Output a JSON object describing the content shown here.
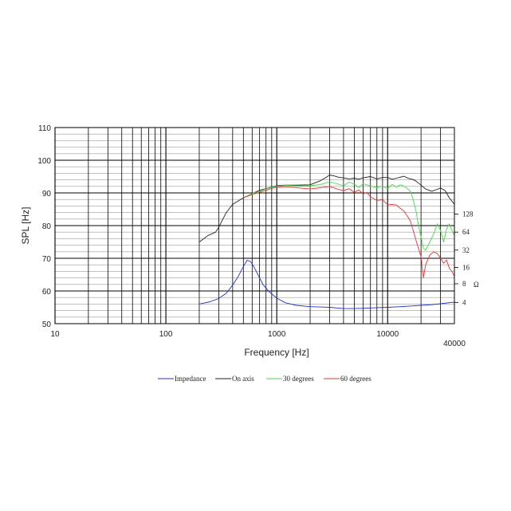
{
  "chart_data": {
    "type": "line",
    "xlabel": "Frequency [Hz]",
    "ylabel": "SPL [Hz]",
    "x_scale": "log",
    "xlim": [
      10,
      40000
    ],
    "ylim": [
      50,
      110
    ],
    "grid": true,
    "legend_position": "bottom",
    "x_ticks": [
      {
        "value": 10,
        "label": "10"
      },
      {
        "value": 100,
        "label": "100"
      },
      {
        "value": 1000,
        "label": "1000"
      },
      {
        "value": 10000,
        "label": "10000"
      },
      {
        "value": 40000,
        "label": "40000"
      }
    ],
    "y_ticks": [
      {
        "value": 50,
        "label": "50"
      },
      {
        "value": 60,
        "label": "60"
      },
      {
        "value": 70,
        "label": "70"
      },
      {
        "value": 80,
        "label": "80"
      },
      {
        "value": 90,
        "label": "90"
      },
      {
        "value": 100,
        "label": "100"
      },
      {
        "value": 110,
        "label": "110"
      }
    ],
    "right_axis": {
      "unit": "Ω",
      "ticks": [
        {
          "label": "4",
          "spl": 56.5
        },
        {
          "label": "8",
          "spl": 62.2
        },
        {
          "label": "16",
          "spl": 67.2
        },
        {
          "label": "32",
          "spl": 72.5
        },
        {
          "label": "64",
          "spl": 78.0
        },
        {
          "label": "128",
          "spl": 83.5
        }
      ]
    },
    "series": [
      {
        "name": "Impedance",
        "color": "#1f2fe0",
        "x": [
          200,
          250,
          300,
          350,
          400,
          450,
          500,
          540,
          580,
          620,
          680,
          750,
          850,
          1000,
          1200,
          1500,
          2000,
          2500,
          3000,
          3500,
          4000,
          5000,
          6000,
          8000,
          10000,
          13000,
          16000,
          20000,
          25000,
          30000,
          40000
        ],
        "y": [
          56,
          56.7,
          57.7,
          59.3,
          61.8,
          64.5,
          67.5,
          69.4,
          69,
          67.5,
          64.8,
          62,
          59.8,
          57.8,
          56.4,
          55.6,
          55.2,
          55.1,
          55,
          54.8,
          54.6,
          54.6,
          54.7,
          54.9,
          55,
          55.2,
          55.4,
          55.6,
          55.8,
          56.1,
          56.6
        ]
      },
      {
        "name": "On axis",
        "color": "#222222",
        "x": [
          200,
          220,
          240,
          260,
          280,
          300,
          350,
          400,
          500,
          600,
          700,
          800,
          900,
          1000,
          1200,
          1500,
          2000,
          2500,
          2800,
          3000,
          3300,
          3600,
          4000,
          4500,
          5000,
          5500,
          6000,
          7000,
          8000,
          9000,
          10000,
          11000,
          12000,
          13000,
          14000,
          15000,
          16000,
          17000,
          18000,
          20000,
          22000,
          25000,
          28000,
          30000,
          33000,
          36000,
          40000
        ],
        "y": [
          75,
          76,
          77,
          77.5,
          78,
          79.5,
          84,
          86.5,
          88.5,
          89.8,
          90.8,
          91.3,
          91.8,
          92.2,
          92.4,
          92.4,
          92.5,
          93.8,
          94.8,
          95.5,
          95.2,
          94.8,
          94.6,
          94.3,
          94.5,
          94.2,
          94.6,
          95,
          94.3,
          94.7,
          94.7,
          94.2,
          94.5,
          94.8,
          95.1,
          94.6,
          94.3,
          94.1,
          93.6,
          92.4,
          91.2,
          90.5,
          91.1,
          91.5,
          90.7,
          88.5,
          86.5
        ]
      },
      {
        "name": "30 degrees",
        "color": "#44dd44",
        "x": [
          500,
          600,
          700,
          800,
          900,
          1000,
          1200,
          1500,
          2000,
          2500,
          3000,
          3500,
          4000,
          4500,
          5000,
          5500,
          6000,
          6500,
          7000,
          8000,
          9000,
          10000,
          11000,
          12000,
          13000,
          14000,
          15000,
          16000,
          17000,
          18000,
          19000,
          20000,
          21000,
          22000,
          24000,
          26000,
          28000,
          30000,
          32000,
          34000,
          36000,
          38000,
          40000
        ],
        "y": [
          88.5,
          89.8,
          90.5,
          91.2,
          91.7,
          92,
          92.3,
          92.2,
          92.2,
          92.6,
          93.4,
          92.8,
          92.2,
          93.3,
          92.7,
          91.6,
          92.8,
          92.5,
          92.1,
          91.7,
          92.1,
          91.3,
          92.6,
          91.8,
          92.5,
          92.1,
          91.4,
          90.5,
          88,
          84.5,
          80,
          76.5,
          73,
          72.5,
          75,
          77.5,
          80.5,
          78.5,
          75,
          79,
          80.5,
          78.5,
          77
        ]
      },
      {
        "name": "60 degrees",
        "color": "#ee3333",
        "x": [
          500,
          600,
          700,
          800,
          900,
          1000,
          1200,
          1500,
          2000,
          2500,
          3000,
          3500,
          4000,
          4500,
          5000,
          5500,
          6000,
          6500,
          7000,
          8000,
          9000,
          10000,
          11000,
          12000,
          13000,
          14000,
          15000,
          16000,
          17000,
          18000,
          19000,
          20000,
          21000,
          22000,
          24000,
          26000,
          28000,
          30000,
          32000,
          34000,
          36000,
          38000,
          40000
        ],
        "y": [
          88.5,
          89.5,
          90.2,
          90.8,
          91.4,
          91.8,
          91.9,
          91.6,
          91.2,
          91.6,
          92,
          91.2,
          90.7,
          91.3,
          90.2,
          90.9,
          89.7,
          90.2,
          88.8,
          87.7,
          87.9,
          86.4,
          86.5,
          86.3,
          85.3,
          84.5,
          83,
          81.5,
          78.5,
          75.5,
          73,
          70.5,
          64,
          68,
          71,
          72,
          71.5,
          70,
          68.5,
          69.5,
          67,
          66,
          64.5
        ]
      }
    ]
  }
}
